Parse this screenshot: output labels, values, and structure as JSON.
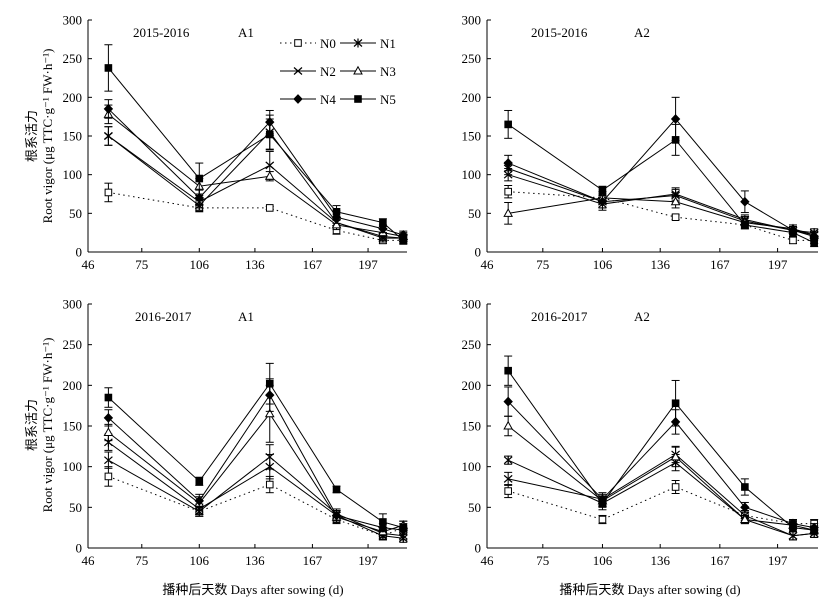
{
  "figure": {
    "x_axis_label": "播种后天数 Days after sowing (d)",
    "y_axis_label_cn": "根系活力",
    "y_axis_label_en": "Root vigor (μg TTC·g⁻¹ FW·h⁻¹)"
  },
  "legend": [
    {
      "name": "N0",
      "marker": "open-square",
      "dash": "dotted"
    },
    {
      "name": "N1",
      "marker": "asterisk",
      "dash": "solid"
    },
    {
      "name": "N2",
      "marker": "cross",
      "dash": "solid"
    },
    {
      "name": "N3",
      "marker": "open-triangle",
      "dash": "solid"
    },
    {
      "name": "N4",
      "marker": "filled-diamond",
      "dash": "solid"
    },
    {
      "name": "N5",
      "marker": "filled-square",
      "dash": "solid"
    }
  ],
  "chart_data": [
    {
      "type": "line",
      "season": "2015-2016",
      "panel_label": "A1",
      "xlim": [
        46,
        218
      ],
      "ylim": [
        0,
        300
      ],
      "x_ticks": [
        46,
        75,
        106,
        136,
        167,
        197
      ],
      "y_ticks": [
        0,
        50,
        100,
        150,
        200,
        250,
        300
      ],
      "x": [
        57,
        106,
        144,
        180,
        205,
        216
      ],
      "series": [
        {
          "name": "N0",
          "values": [
            77,
            57,
            57,
            28,
            15,
            15
          ],
          "errors": [
            12,
            5,
            2,
            5,
            4,
            4
          ]
        },
        {
          "name": "N1",
          "values": [
            150,
            60,
            155,
            38,
            18,
            18
          ],
          "errors": [
            12,
            6,
            22,
            6,
            5,
            5
          ]
        },
        {
          "name": "N2",
          "values": [
            150,
            65,
            112,
            38,
            20,
            18
          ],
          "errors": [
            12,
            8,
            18,
            6,
            5,
            5
          ]
        },
        {
          "name": "N3",
          "values": [
            178,
            85,
            98,
            35,
            25,
            20
          ],
          "errors": [
            12,
            10,
            6,
            6,
            5,
            5
          ]
        },
        {
          "name": "N4",
          "values": [
            185,
            70,
            168,
            45,
            30,
            22
          ],
          "errors": [
            12,
            10,
            15,
            8,
            5,
            5
          ]
        },
        {
          "name": "N5",
          "values": [
            238,
            95,
            152,
            52,
            38,
            15
          ],
          "errors": [
            30,
            20,
            20,
            8,
            5,
            5
          ]
        }
      ]
    },
    {
      "type": "line",
      "season": "2015-2016",
      "panel_label": "A2",
      "xlim": [
        46,
        218
      ],
      "ylim": [
        0,
        300
      ],
      "x_ticks": [
        46,
        75,
        106,
        136,
        167,
        197
      ],
      "y_ticks": [
        0,
        50,
        100,
        150,
        200,
        250,
        300
      ],
      "x": [
        57,
        106,
        144,
        180,
        205,
        216
      ],
      "series": [
        {
          "name": "N0",
          "values": [
            78,
            70,
            45,
            35,
            15,
            15
          ],
          "errors": [
            8,
            8,
            3,
            5,
            4,
            4
          ]
        },
        {
          "name": "N1",
          "values": [
            108,
            65,
            73,
            40,
            28,
            25
          ],
          "errors": [
            8,
            8,
            8,
            6,
            5,
            5
          ]
        },
        {
          "name": "N2",
          "values": [
            100,
            62,
            75,
            42,
            28,
            22
          ],
          "errors": [
            8,
            8,
            8,
            6,
            5,
            5
          ]
        },
        {
          "name": "N3",
          "values": [
            50,
            70,
            65,
            38,
            30,
            22
          ],
          "errors": [
            14,
            8,
            8,
            6,
            5,
            5
          ]
        },
        {
          "name": "N4",
          "values": [
            115,
            65,
            172,
            65,
            28,
            20
          ],
          "errors": [
            10,
            8,
            28,
            14,
            5,
            5
          ]
        },
        {
          "name": "N5",
          "values": [
            165,
            80,
            145,
            35,
            25,
            12
          ],
          "errors": [
            18,
            5,
            20,
            5,
            5,
            5
          ]
        }
      ]
    },
    {
      "type": "line",
      "season": "2016-2017",
      "panel_label": "A1",
      "xlim": [
        46,
        218
      ],
      "ylim": [
        0,
        300
      ],
      "x_ticks": [
        46,
        75,
        106,
        136,
        167,
        197
      ],
      "y_ticks": [
        0,
        50,
        100,
        150,
        200,
        250,
        300
      ],
      "x": [
        57,
        106,
        144,
        180,
        205,
        216
      ],
      "series": [
        {
          "name": "N0",
          "values": [
            88,
            45,
            78,
            35,
            15,
            25
          ],
          "errors": [
            12,
            6,
            10,
            5,
            5,
            5
          ]
        },
        {
          "name": "N1",
          "values": [
            130,
            48,
            100,
            40,
            15,
            12
          ],
          "errors": [
            10,
            6,
            15,
            6,
            5,
            5
          ]
        },
        {
          "name": "N2",
          "values": [
            108,
            45,
            112,
            42,
            18,
            15
          ],
          "errors": [
            10,
            6,
            15,
            6,
            5,
            5
          ]
        },
        {
          "name": "N3",
          "values": [
            142,
            55,
            165,
            38,
            20,
            28
          ],
          "errors": [
            10,
            8,
            35,
            6,
            5,
            5
          ]
        },
        {
          "name": "N4",
          "values": [
            160,
            58,
            188,
            40,
            25,
            22
          ],
          "errors": [
            10,
            8,
            20,
            6,
            5,
            5
          ]
        },
        {
          "name": "N5",
          "values": [
            185,
            82,
            202,
            72,
            32,
            25
          ],
          "errors": [
            12,
            5,
            25,
            4,
            10,
            8
          ]
        }
      ]
    },
    {
      "type": "line",
      "season": "2016-2017",
      "panel_label": "A2",
      "xlim": [
        46,
        218
      ],
      "ylim": [
        0,
        300
      ],
      "x_ticks": [
        46,
        75,
        106,
        136,
        167,
        197
      ],
      "y_ticks": [
        0,
        50,
        100,
        150,
        200,
        250,
        300
      ],
      "x": [
        57,
        106,
        144,
        180,
        205,
        216
      ],
      "series": [
        {
          "name": "N0",
          "values": [
            70,
            35,
            75,
            40,
            30,
            30
          ],
          "errors": [
            8,
            5,
            8,
            6,
            5,
            5
          ]
        },
        {
          "name": "N1",
          "values": [
            108,
            55,
            105,
            35,
            15,
            18
          ],
          "errors": [
            5,
            5,
            10,
            5,
            5,
            5
          ]
        },
        {
          "name": "N2",
          "values": [
            85,
            60,
            115,
            40,
            15,
            18
          ],
          "errors": [
            8,
            6,
            10,
            6,
            5,
            5
          ]
        },
        {
          "name": "N3",
          "values": [
            150,
            58,
            112,
            35,
            28,
            22
          ],
          "errors": [
            12,
            6,
            12,
            5,
            5,
            5
          ]
        },
        {
          "name": "N4",
          "values": [
            180,
            60,
            155,
            50,
            30,
            25
          ],
          "errors": [
            18,
            8,
            15,
            6,
            5,
            5
          ]
        },
        {
          "name": "N5",
          "values": [
            218,
            55,
            178,
            75,
            25,
            22
          ],
          "errors": [
            18,
            8,
            28,
            10,
            5,
            5
          ]
        }
      ]
    }
  ]
}
